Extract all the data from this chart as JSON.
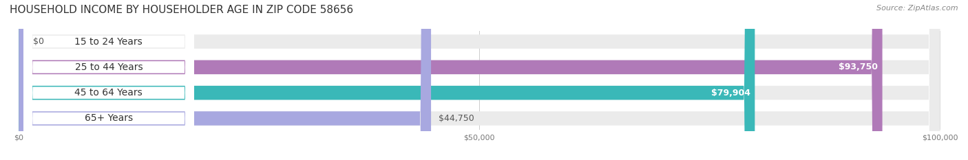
{
  "title": "HOUSEHOLD INCOME BY HOUSEHOLDER AGE IN ZIP CODE 58656",
  "source": "Source: ZipAtlas.com",
  "categories": [
    "15 to 24 Years",
    "25 to 44 Years",
    "45 to 64 Years",
    "65+ Years"
  ],
  "values": [
    0,
    93750,
    79904,
    44750
  ],
  "value_labels": [
    "$0",
    "$93,750",
    "$79,904",
    "$44,750"
  ],
  "bar_colors": [
    "#a8b8e8",
    "#b07ab8",
    "#3ab8b8",
    "#a8a8e0"
  ],
  "bar_bg_color": "#efefef",
  "track_bg_color": "#f5f5f5",
  "max_value": 100000,
  "x_ticks": [
    0,
    50000,
    100000
  ],
  "x_tick_labels": [
    "$0",
    "$50,000",
    "$100,000"
  ],
  "title_fontsize": 11,
  "source_fontsize": 8,
  "label_fontsize": 10,
  "value_fontsize": 9,
  "background_color": "#ffffff",
  "figsize": [
    14.06,
    2.33
  ],
  "dpi": 100
}
